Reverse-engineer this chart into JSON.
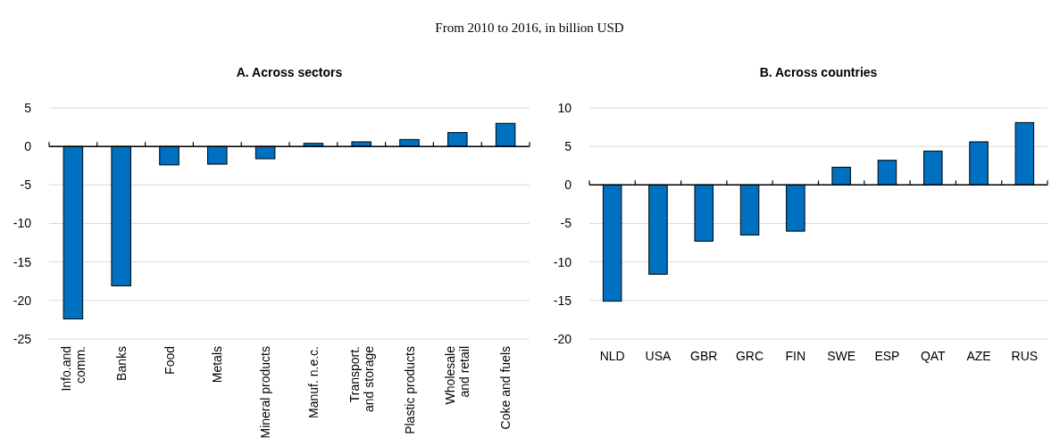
{
  "chart_data": [
    {
      "type": "bar",
      "title": "A. Across sectors",
      "annotations": [
        "From 2010 to 2016, in billion USD"
      ],
      "categories": [
        "Info.and\ncomm.",
        "Banks",
        "Food",
        "Metals",
        "Mineral products",
        "Manuf. n.e.c.",
        "Transport.\nand storage",
        "Plastic products",
        "Wholesale\nand retail",
        "Coke and fuels"
      ],
      "values": [
        -22.4,
        -18.1,
        -2.4,
        -2.3,
        -1.6,
        0.4,
        0.6,
        0.9,
        1.8,
        3.0
      ],
      "color": "#0070c0",
      "ylim": [
        -25,
        5
      ],
      "yticks": [
        -25,
        -20,
        -15,
        -10,
        -5,
        0,
        5
      ],
      "grid": "y"
    },
    {
      "type": "bar",
      "title": "B. Across countries",
      "categories": [
        "NLD",
        "USA",
        "GBR",
        "GRC",
        "FIN",
        "SWE",
        "ESP",
        "QAT",
        "AZE",
        "RUS"
      ],
      "values": [
        -15.1,
        -11.6,
        -7.3,
        -6.5,
        -6.0,
        2.3,
        3.2,
        4.4,
        5.6,
        8.1
      ],
      "color": "#0070c0",
      "ylim": [
        -20,
        10
      ],
      "yticks": [
        -20,
        -15,
        -10,
        -5,
        0,
        5,
        10
      ],
      "grid": "y"
    }
  ]
}
